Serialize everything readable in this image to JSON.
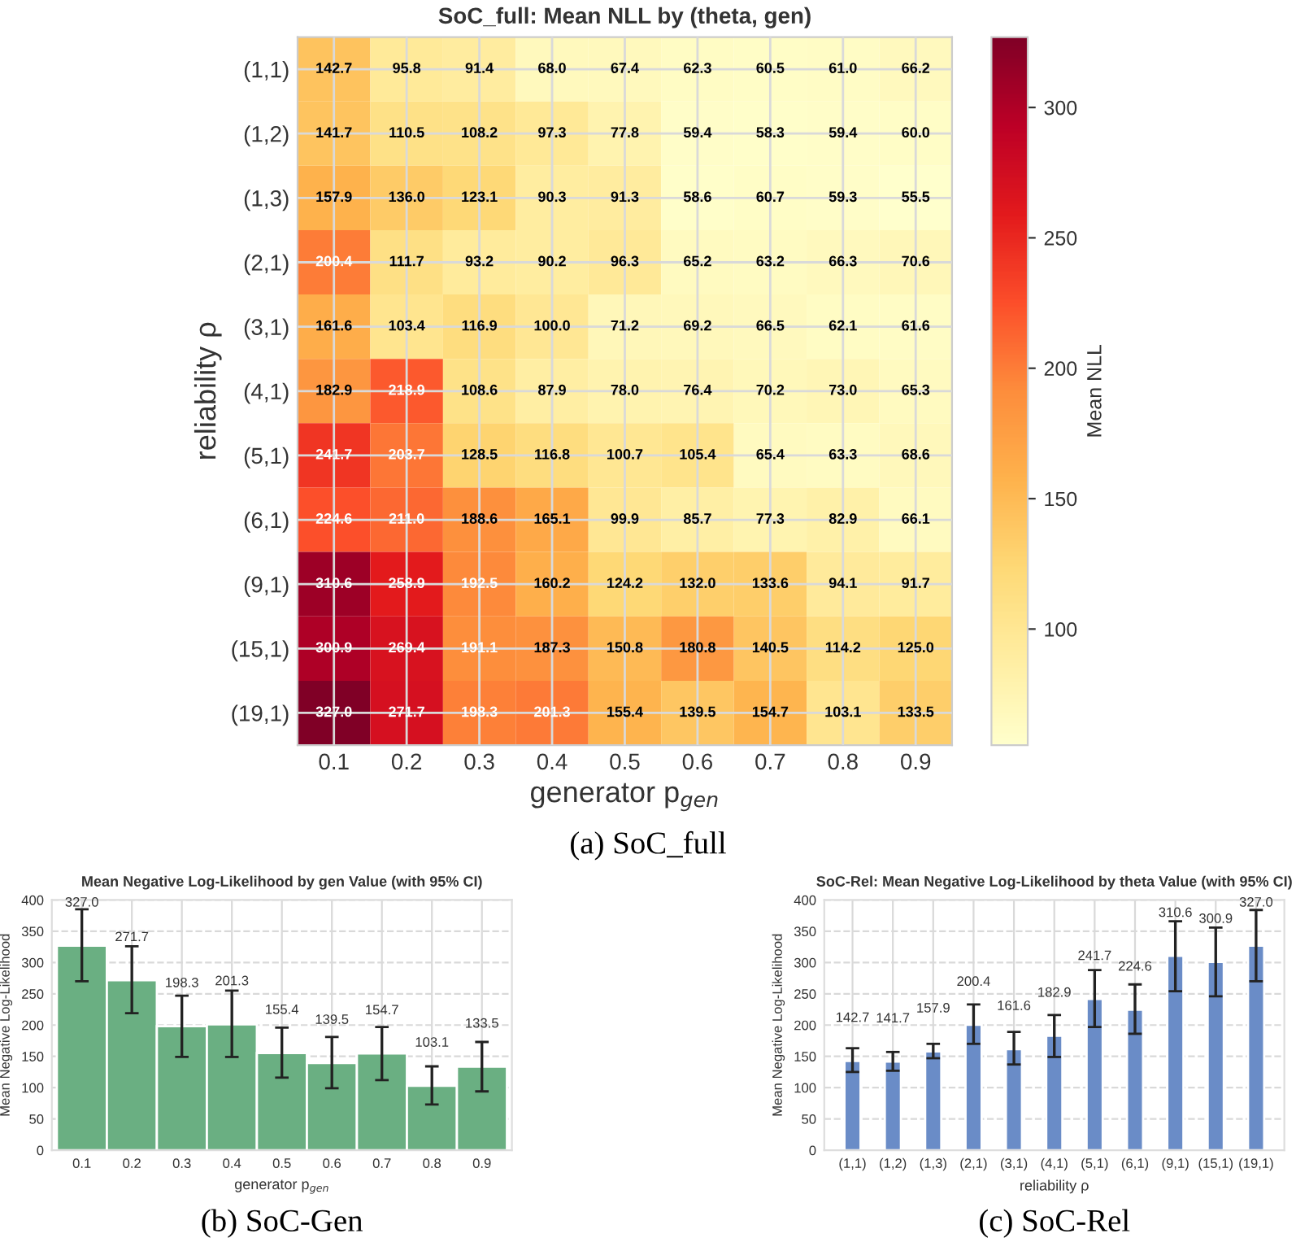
{
  "chart_data": [
    {
      "type": "heatmap",
      "title": "SoC_full: Mean NLL by (theta, gen)",
      "xlabel": "generator p$_{gen}$",
      "ylabel": "reliability ρ",
      "clabel": "Mean NLL",
      "categories": [
        "0.1",
        "0.2",
        "0.3",
        "0.4",
        "0.5",
        "0.6",
        "0.7",
        "0.8",
        "0.9"
      ],
      "y_categories": [
        "(1,1)",
        "(1,2)",
        "(1,3)",
        "(2,1)",
        "(3,1)",
        "(4,1)",
        "(5,1)",
        "(6,1)",
        "(9,1)",
        "(15,1)",
        "(19,1)"
      ],
      "cells": [
        [
          142.7,
          95.8,
          91.4,
          68.0,
          67.4,
          62.3,
          60.5,
          61.0,
          66.2
        ],
        [
          141.7,
          110.5,
          108.2,
          97.3,
          77.8,
          59.4,
          58.3,
          59.4,
          60.0
        ],
        [
          157.9,
          136.0,
          123.1,
          90.3,
          91.3,
          58.6,
          60.7,
          59.3,
          55.5
        ],
        [
          200.4,
          111.7,
          93.2,
          90.2,
          96.3,
          65.2,
          63.2,
          66.3,
          70.6
        ],
        [
          161.6,
          103.4,
          116.9,
          100.0,
          71.2,
          69.2,
          66.5,
          62.1,
          61.6
        ],
        [
          182.9,
          218.9,
          108.6,
          87.9,
          78.0,
          76.4,
          70.2,
          73.0,
          65.3
        ],
        [
          241.7,
          203.7,
          128.5,
          116.8,
          100.7,
          105.4,
          65.4,
          63.3,
          68.6
        ],
        [
          224.6,
          211.0,
          188.6,
          165.1,
          99.9,
          85.7,
          77.3,
          82.9,
          66.1
        ],
        [
          310.6,
          258.9,
          192.5,
          160.2,
          124.2,
          132.0,
          133.6,
          94.1,
          91.7
        ],
        [
          300.9,
          269.4,
          191.1,
          187.3,
          150.8,
          180.8,
          140.5,
          114.2,
          125.0
        ],
        [
          327.0,
          271.7,
          198.3,
          201.3,
          155.4,
          139.5,
          154.7,
          103.1,
          133.5
        ]
      ],
      "cell_labels": [
        [
          "142.7",
          "95.8",
          "91.4",
          "68.0",
          "67.4",
          "62.3",
          "60.5",
          "61.0",
          "66.2"
        ],
        [
          "141.7",
          "110.5",
          "108.2",
          "97.3",
          "77.8",
          "59.4",
          "58.3",
          "59.4",
          "60.0"
        ],
        [
          "157.9",
          "136.0",
          "123.1",
          "90.3",
          "91.3",
          "58.6",
          "60.7",
          "59.3",
          "55.5"
        ],
        [
          "200.4",
          "111.7",
          "93.2",
          "90.2",
          "96.3",
          "65.2",
          "63.2",
          "66.3",
          "70.6"
        ],
        [
          "161.6",
          "103.4",
          "116.9",
          "100.0",
          "71.2",
          "69.2",
          "66.5",
          "62.1",
          "61.6"
        ],
        [
          "182.9",
          "218.9",
          "108.6",
          "87.9",
          "78.0",
          "76.4",
          "70.2",
          "73.0",
          "65.3"
        ],
        [
          "241.7",
          "203.7",
          "128.5",
          "116.8",
          "100.7",
          "105.4",
          "65.4",
          "63.3",
          "68.6"
        ],
        [
          "224.6",
          "211.0",
          "188.6",
          "165.1",
          "99.9",
          "85.7",
          "77.3",
          "82.9",
          "66.1"
        ],
        [
          "310.6",
          "258.9",
          "192.5",
          "160.2",
          "124.2",
          "132.0",
          "133.6",
          "94.1",
          "91.7"
        ],
        [
          "300.9",
          "269.4",
          "191.1",
          "187.3",
          "150.8",
          "180.8",
          "140.5",
          "114.2",
          "125.0"
        ],
        [
          "327.0",
          "271.7",
          "198.3",
          "201.3",
          "155.4",
          "139.5",
          "154.7",
          "103.1",
          "133.5"
        ]
      ],
      "clim": [
        55.5,
        327.0
      ],
      "cticks": [
        100,
        150,
        200,
        250,
        300
      ],
      "grid": true,
      "annotations": [
        "(a) SoC_full"
      ]
    },
    {
      "type": "bar",
      "title": "Mean Negative Log-Likelihood by gen Value (with 95% CI)",
      "xlabel": "generator p$_{gen}$",
      "ylabel": "Mean Negative Log-Likelihood",
      "categories": [
        "0.1",
        "0.2",
        "0.3",
        "0.4",
        "0.5",
        "0.6",
        "0.7",
        "0.8",
        "0.9"
      ],
      "values": [
        327.0,
        271.7,
        198.3,
        201.3,
        155.4,
        139.5,
        154.7,
        103.1,
        133.5
      ],
      "errors": [
        [
          270,
          385
        ],
        [
          219,
          326
        ],
        [
          149,
          247
        ],
        [
          149,
          255
        ],
        [
          116,
          196
        ],
        [
          99,
          181
        ],
        [
          112,
          197
        ],
        [
          73,
          134
        ],
        [
          94,
          173
        ]
      ],
      "value_labels": [
        "327.0",
        "271.7",
        "198.3",
        "201.3",
        "155.4",
        "139.5",
        "154.7",
        "103.1",
        "133.5"
      ],
      "color": "#6aaf82",
      "ylim": [
        0,
        400
      ],
      "yticks": [
        0,
        50,
        100,
        150,
        200,
        250,
        300,
        350,
        400
      ],
      "grid": true,
      "annotations": [
        "(b) SoC-Gen"
      ]
    },
    {
      "type": "bar",
      "title": "SoC-Rel: Mean Negative Log-Likelihood by theta Value (with 95% CI)",
      "xlabel": "reliability ρ",
      "ylabel": "Mean Negative Log-Likelihood",
      "categories": [
        "(1,1)",
        "(1,2)",
        "(1,3)",
        "(2,1)",
        "(3,1)",
        "(4,1)",
        "(5,1)",
        "(6,1)",
        "(9,1)",
        "(15,1)",
        "(19,1)"
      ],
      "values": [
        142.7,
        141.7,
        157.9,
        200.4,
        161.6,
        182.9,
        241.7,
        224.6,
        310.6,
        300.9,
        327.0
      ],
      "errors": [
        [
          125,
          163
        ],
        [
          127,
          157
        ],
        [
          147,
          170
        ],
        [
          170,
          233
        ],
        [
          137,
          189
        ],
        [
          149,
          216
        ],
        [
          197,
          288
        ],
        [
          186,
          265
        ],
        [
          254,
          366
        ],
        [
          246,
          356
        ],
        [
          270,
          384
        ]
      ],
      "value_labels": [
        "142.7",
        "141.7",
        "157.9",
        "200.4",
        "161.6",
        "182.9",
        "241.7",
        "224.6",
        "310.6",
        "300.9",
        "327.0"
      ],
      "color": "#6a8cc7",
      "ylim": [
        0,
        400
      ],
      "yticks": [
        0,
        50,
        100,
        150,
        200,
        250,
        300,
        350,
        400
      ],
      "grid": true,
      "annotations": [
        "(c) SoC-Rel"
      ]
    }
  ]
}
